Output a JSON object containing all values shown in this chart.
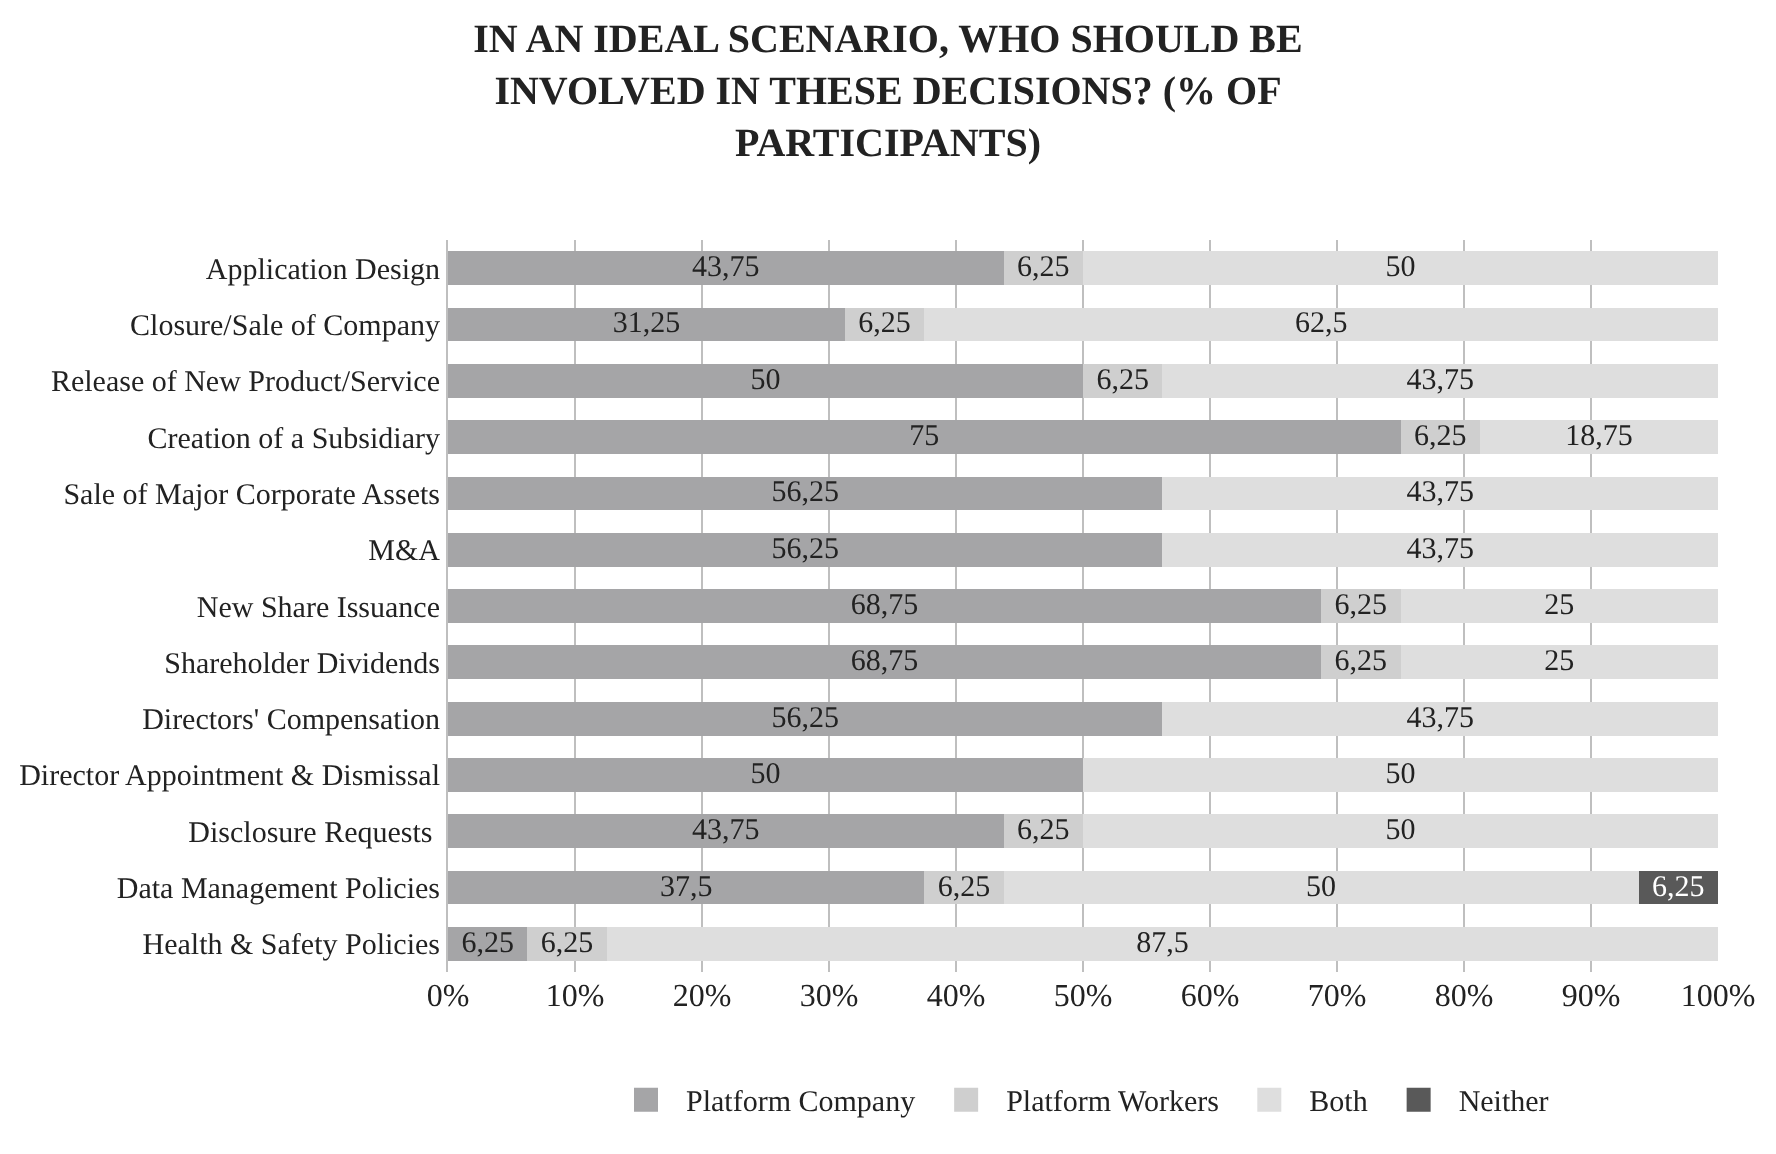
{
  "chart_data": {
    "type": "bar",
    "orientation": "horizontal",
    "stacked": true,
    "title": "IN AN IDEAL SCENARIO, WHO SHOULD BE INVOLVED IN THESE DECISIONS? (% OF PARTICIPANTS)",
    "categories": [
      "Application Design",
      "Closure/Sale of Company",
      "Release of New Product/Service",
      "Creation of a Subsidiary",
      "Sale of Major Corporate Assets",
      "M&A",
      "New Share Issuance",
      "Shareholder Dividends",
      "Directors' Compensation",
      "Director Appointment & Dismissal",
      "Disclosure Requests ",
      "Data Management Policies",
      "Health & Safety Policies"
    ],
    "series": [
      {
        "name": "Platform Company",
        "color": "#a5a5a7",
        "values": [
          43.75,
          31.25,
          50,
          75,
          56.25,
          56.25,
          68.75,
          68.75,
          56.25,
          50,
          43.75,
          37.5,
          6.25
        ],
        "value_labels": [
          "43,75",
          "31,25",
          "50",
          "75",
          "56,25",
          "56,25",
          "68,75",
          "68,75",
          "56,25",
          "50",
          "43,75",
          "37,5",
          "6,25"
        ]
      },
      {
        "name": "Platform Workers",
        "color": "#cfcfcf",
        "values": [
          6.25,
          6.25,
          6.25,
          6.25,
          0,
          0,
          6.25,
          6.25,
          0,
          0,
          6.25,
          6.25,
          6.25
        ],
        "value_labels": [
          "6,25",
          "6,25",
          "6,25",
          "6,25",
          null,
          null,
          "6,25",
          "6,25",
          null,
          null,
          "6,25",
          "6,25",
          "6,25"
        ]
      },
      {
        "name": "Both",
        "color": "#dedede",
        "values": [
          50,
          62.5,
          43.75,
          18.75,
          43.75,
          43.75,
          25,
          25,
          43.75,
          50,
          50,
          50,
          87.5
        ],
        "value_labels": [
          "50",
          "62,5",
          "43,75",
          "18,75",
          "43,75",
          "43,75",
          "25",
          "25",
          "43,75",
          "50",
          "50",
          "50",
          "87,5"
        ]
      },
      {
        "name": "Neither",
        "color": "#595959",
        "values": [
          0,
          0,
          0,
          0,
          0,
          0,
          0,
          0,
          0,
          0,
          0,
          6.25,
          0
        ],
        "value_labels": [
          null,
          null,
          null,
          null,
          null,
          null,
          null,
          null,
          null,
          null,
          null,
          "6,25",
          null
        ]
      }
    ],
    "xlim": [
      0,
      100
    ],
    "xticks": [
      {
        "value": 0,
        "label": "0%"
      },
      {
        "value": 10,
        "label": "10%"
      },
      {
        "value": 20,
        "label": "20%"
      },
      {
        "value": 30,
        "label": "30%"
      },
      {
        "value": 40,
        "label": "40%"
      },
      {
        "value": 50,
        "label": "50%"
      },
      {
        "value": 60,
        "label": "60%"
      },
      {
        "value": 70,
        "label": "70%"
      },
      {
        "value": 80,
        "label": "80%"
      },
      {
        "value": 90,
        "label": "90%"
      },
      {
        "value": 100,
        "label": "100%"
      }
    ],
    "grid": "x",
    "legend": "bottom"
  }
}
